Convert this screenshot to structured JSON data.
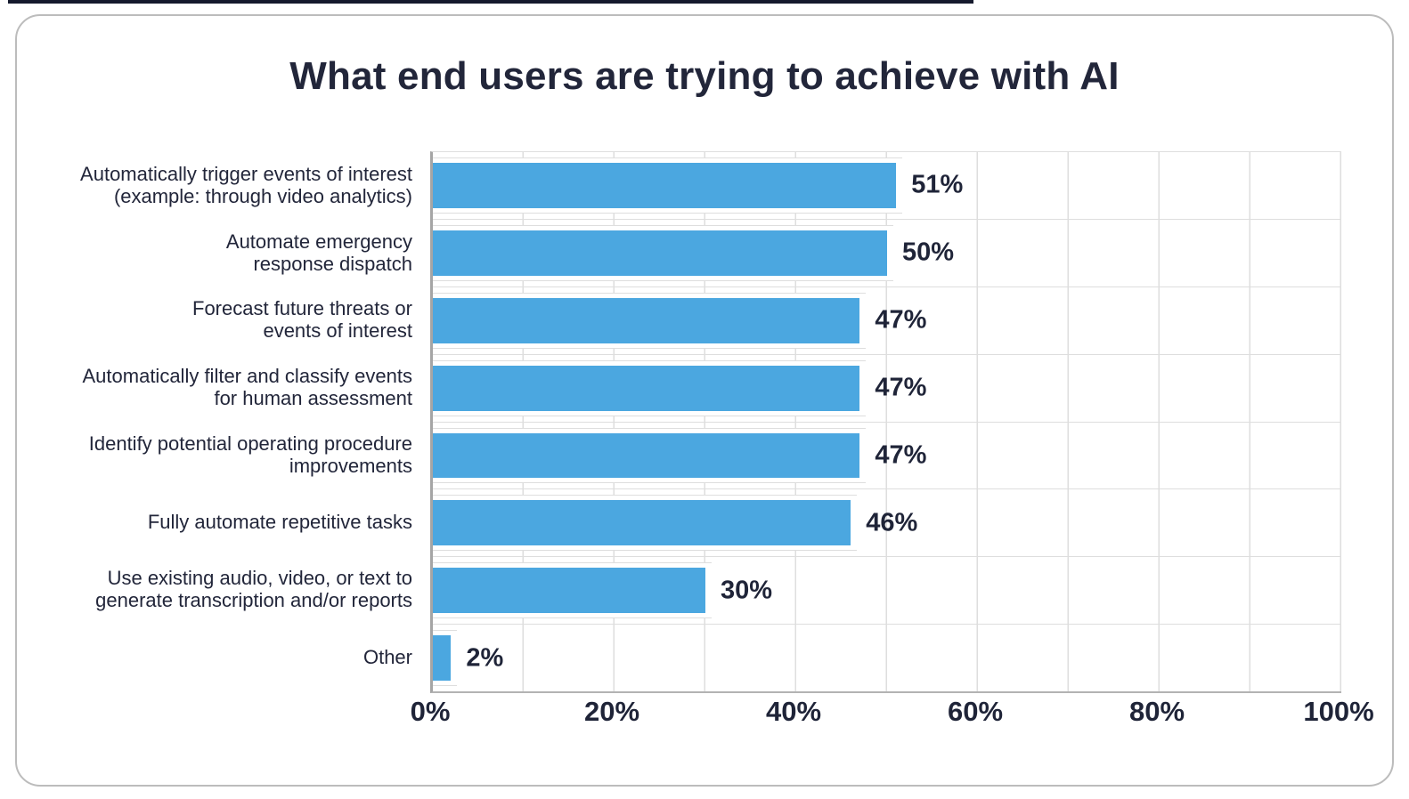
{
  "page": {
    "top_strip_color": "#151a2d",
    "card_border_color": "#bcbcbc"
  },
  "chart_data": {
    "type": "bar",
    "orientation": "horizontal",
    "title": "What end users are trying to achieve with AI",
    "xlabel": "",
    "ylabel": "",
    "legend_position": "none",
    "grid": "on",
    "xlim": [
      0,
      100
    ],
    "gridline_interval_pct": 10,
    "x_tick_labels": [
      "0%",
      "20%",
      "40%",
      "60%",
      "80%",
      "100%"
    ],
    "categories": [
      "Automatically trigger events of interest\n(example: through video analytics)",
      "Automate emergency\nresponse dispatch",
      "Forecast future threats or\nevents of interest",
      "Automatically filter and classify events\nfor human assessment",
      "Identify potential operating procedure\nimprovements",
      "Fully automate repetitive tasks",
      "Use existing audio, video, or text to\ngenerate transcription and/or reports",
      "Other"
    ],
    "values": [
      51,
      50,
      47,
      47,
      47,
      46,
      30,
      2
    ],
    "value_labels": [
      "51%",
      "50%",
      "47%",
      "47%",
      "47%",
      "46%",
      "30%",
      "2%"
    ],
    "bar_color": "#4ba7e0",
    "text_color": "#22263a",
    "gridline_color": "#dedede",
    "axis_line_color": "#a5a5a5"
  }
}
